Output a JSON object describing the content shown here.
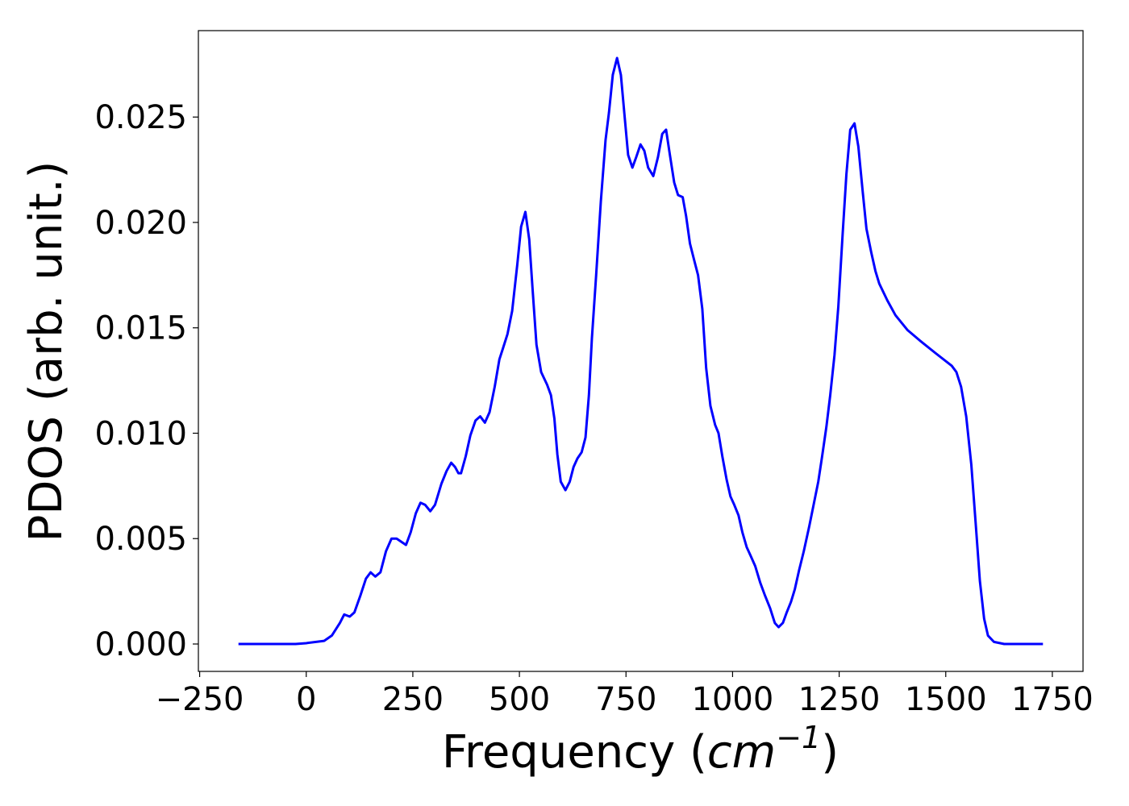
{
  "chart_data": {
    "type": "line",
    "xlabel": {
      "prefix": "Frequency (",
      "unit": "cm",
      "exponent": "−1",
      "suffix": ")"
    },
    "ylabel": "PDOS (arb. unit.)",
    "xlim": [
      -253,
      1822
    ],
    "ylim": [
      -0.0013,
      0.0291
    ],
    "xticks": [
      {
        "value": -250,
        "label": "−250"
      },
      0,
      250,
      500,
      750,
      1000,
      1250,
      1500,
      1750
    ],
    "yticks": [
      {
        "value": 0,
        "label": "0.000"
      },
      {
        "value": 0.005,
        "label": "0.005"
      },
      {
        "value": 0.01,
        "label": "0.010"
      },
      {
        "value": 0.015,
        "label": "0.015"
      },
      {
        "value": 0.02,
        "label": "0.020"
      },
      {
        "value": 0.025,
        "label": "0.025"
      }
    ],
    "grid": false,
    "x": [
      -159,
      -25,
      0,
      42,
      60,
      79,
      89,
      102,
      113,
      127,
      140,
      151,
      162,
      174,
      187,
      200,
      212,
      234,
      245,
      257,
      268,
      279,
      291,
      302,
      317,
      329,
      340,
      349,
      357,
      363,
      374,
      385,
      397,
      408,
      419,
      430,
      442,
      453,
      461,
      472,
      483,
      495,
      504,
      514,
      523,
      531,
      540,
      551,
      565,
      574,
      582,
      589,
      597,
      608,
      618,
      627,
      636,
      646,
      655,
      663,
      670,
      680,
      691,
      702,
      710,
      719,
      729,
      738,
      746,
      755,
      765,
      774,
      784,
      793,
      802,
      814,
      825,
      835,
      844,
      853,
      863,
      872,
      883,
      891,
      900,
      910,
      919,
      929,
      938,
      948,
      959,
      967,
      976,
      986,
      995,
      1004,
      1014,
      1023,
      1033,
      1042,
      1053,
      1065,
      1076,
      1088,
      1099,
      1108,
      1118,
      1127,
      1137,
      1146,
      1156,
      1167,
      1180,
      1190,
      1201,
      1210,
      1220,
      1229,
      1239,
      1248,
      1258,
      1267,
      1276,
      1286,
      1295,
      1305,
      1314,
      1325,
      1335,
      1344,
      1363,
      1382,
      1410,
      1439,
      1476,
      1514,
      1525,
      1536,
      1548,
      1560,
      1571,
      1580,
      1590,
      1599,
      1613,
      1637,
      1728
    ],
    "series": [
      {
        "name": "PDOS",
        "color": "#0000ff",
        "values": [
          0,
          0,
          4e-05,
          0.00015,
          0.0004,
          0.001,
          0.0014,
          0.0013,
          0.0015,
          0.0023,
          0.0031,
          0.0034,
          0.0032,
          0.0034,
          0.0044,
          0.005,
          0.005,
          0.0047,
          0.0053,
          0.0062,
          0.0067,
          0.0066,
          0.0063,
          0.0066,
          0.0076,
          0.0082,
          0.0086,
          0.0084,
          0.0081,
          0.0081,
          0.0089,
          0.0099,
          0.0106,
          0.0108,
          0.0105,
          0.011,
          0.0122,
          0.0135,
          0.014,
          0.0147,
          0.0158,
          0.018,
          0.0198,
          0.0205,
          0.0192,
          0.0168,
          0.0142,
          0.0129,
          0.0123,
          0.0118,
          0.0107,
          0.009,
          0.0077,
          0.0073,
          0.0077,
          0.0084,
          0.0088,
          0.0091,
          0.0098,
          0.0118,
          0.0145,
          0.0175,
          0.021,
          0.0239,
          0.0252,
          0.027,
          0.0278,
          0.027,
          0.0252,
          0.0232,
          0.0226,
          0.0231,
          0.0237,
          0.0234,
          0.0226,
          0.0222,
          0.0231,
          0.0242,
          0.0244,
          0.0232,
          0.0219,
          0.0213,
          0.0212,
          0.0203,
          0.019,
          0.0182,
          0.0175,
          0.0159,
          0.0131,
          0.0113,
          0.0104,
          0.01,
          0.0089,
          0.0078,
          0.007,
          0.0066,
          0.0061,
          0.0053,
          0.0046,
          0.0042,
          0.0037,
          0.0029,
          0.0023,
          0.0017,
          0.001,
          0.0008,
          0.001,
          0.0015,
          0.002,
          0.0026,
          0.0035,
          0.0044,
          0.0056,
          0.0066,
          0.0077,
          0.0089,
          0.0103,
          0.0118,
          0.0137,
          0.016,
          0.0194,
          0.0223,
          0.0244,
          0.0247,
          0.0236,
          0.0215,
          0.0197,
          0.0186,
          0.0177,
          0.0171,
          0.0163,
          0.0156,
          0.0149,
          0.0144,
          0.0138,
          0.0132,
          0.0129,
          0.0122,
          0.0108,
          0.0085,
          0.0055,
          0.003,
          0.0012,
          0.0004,
          0.0001,
          0,
          0
        ]
      }
    ]
  }
}
